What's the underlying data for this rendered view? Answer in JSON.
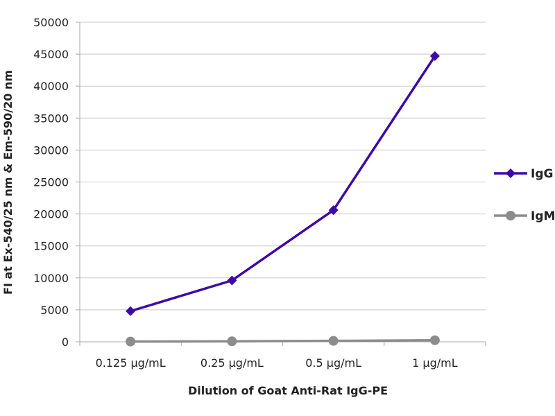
{
  "chart_data": {
    "type": "line",
    "title": "",
    "xlabel": "Dilution of Goat Anti-Rat IgG-PE",
    "ylabel": "FI at Ex-540/25 nm & Em-590/20 nm",
    "categories": [
      "0.125 µg/mL",
      "0.25 µg/mL",
      "0.5 µg/mL",
      "1 µg/mL"
    ],
    "ylim": [
      0,
      50000
    ],
    "yticks": [
      0,
      5000,
      10000,
      15000,
      20000,
      25000,
      30000,
      35000,
      40000,
      45000,
      50000
    ],
    "grid": true,
    "legend_position": "right",
    "series": [
      {
        "name": "IgG",
        "color": "#3d0aa8",
        "marker": "diamond",
        "values": [
          4800,
          9600,
          20600,
          44700
        ]
      },
      {
        "name": "IgM",
        "color": "#8c8c8c",
        "marker": "circle",
        "values": [
          40,
          80,
          150,
          250
        ]
      }
    ]
  }
}
